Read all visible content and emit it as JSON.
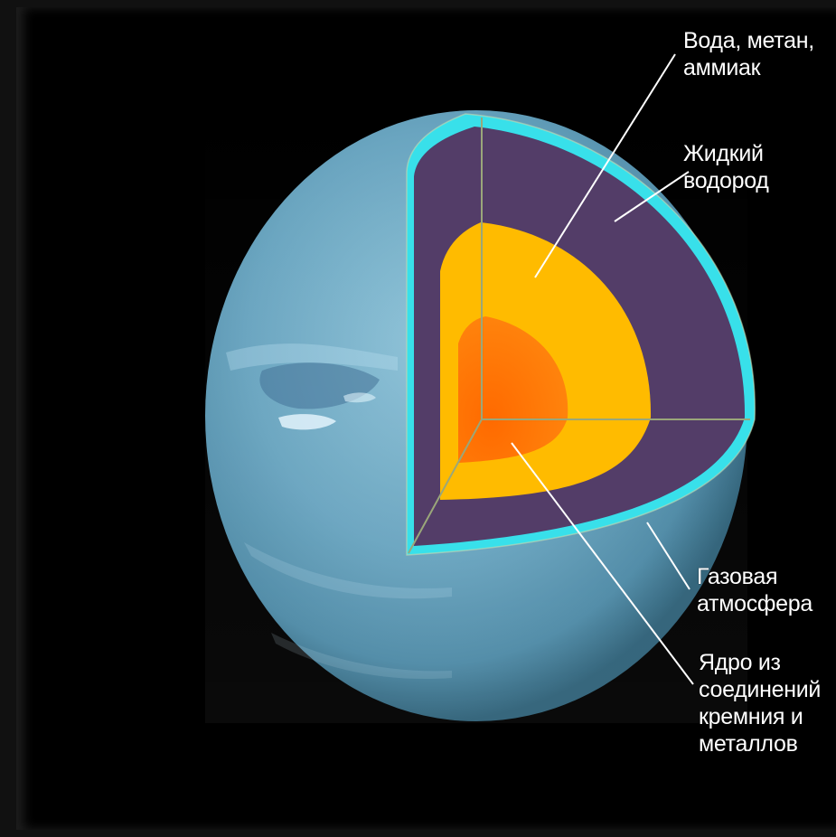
{
  "labels": {
    "water_methane_ammonia": "Вода, метан,\nаммиак",
    "liquid_hydrogen": "Жидкий\nводород",
    "gas_atmosphere": "Газовая\nатмосфера",
    "core": "Ядро из\nсоединений\nкремния и\nметаллов"
  },
  "colors": {
    "background": "#000000",
    "planet_surface": "#7fb3cc",
    "atmosphere": "#38e0ea",
    "liquid_hydrogen": "#533d68",
    "water_methane_ammonia": "#ffbb00",
    "core": "#ff7f00",
    "leader_lines": "#ffffff"
  }
}
